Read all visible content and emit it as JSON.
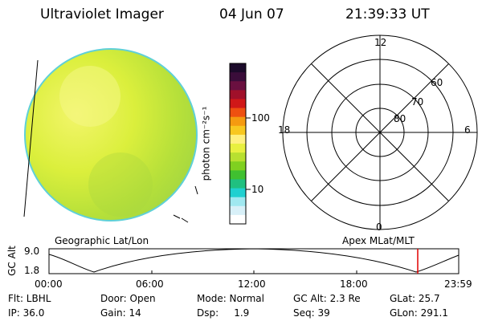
{
  "header": {
    "title": "Ultraviolet Imager",
    "date": "04 Jun 07",
    "time": "21:39:33 UT"
  },
  "colorbar": {
    "unit_label": "photon cm⁻²s⁻¹",
    "tick_100": "100",
    "tick_10": "10",
    "colors": [
      "#1b0a2a",
      "#3a0d3a",
      "#6a1040",
      "#a0102a",
      "#d01818",
      "#ee5010",
      "#f59a10",
      "#f8c820",
      "#fff080",
      "#e8f040",
      "#b8e030",
      "#80d020",
      "#40c030",
      "#20c080",
      "#20d0d0",
      "#a0e8f0",
      "#d8f0f8",
      "#ffffff"
    ]
  },
  "polar": {
    "label_12": "12",
    "label_18": "18",
    "label_6": "6",
    "label_0": "0",
    "label_60": "60",
    "label_70": "70",
    "label_80": "80"
  },
  "timeline": {
    "left_label": "Geographic Lat/Lon",
    "right_label": "Apex MLat/MLT",
    "axis_title": "GC Alt",
    "y_max": "9.0",
    "y_min": "1.8",
    "times": [
      "00:00",
      "06:00",
      "12:00",
      "18:00",
      "23:59"
    ],
    "marker_color": "#e00000"
  },
  "info": {
    "flt": "Flt: LBHL",
    "door": "Door: Open",
    "mode": "Mode: Normal",
    "gcalt": "GC Alt: 2.3 Re",
    "glat": "GLat:  25.7",
    "ip": "IP: 36.0",
    "gain": "Gain: 14",
    "dsp": "Dsp:     1.9",
    "seq": "Seq: 39",
    "glon": "GLon: 291.1"
  }
}
